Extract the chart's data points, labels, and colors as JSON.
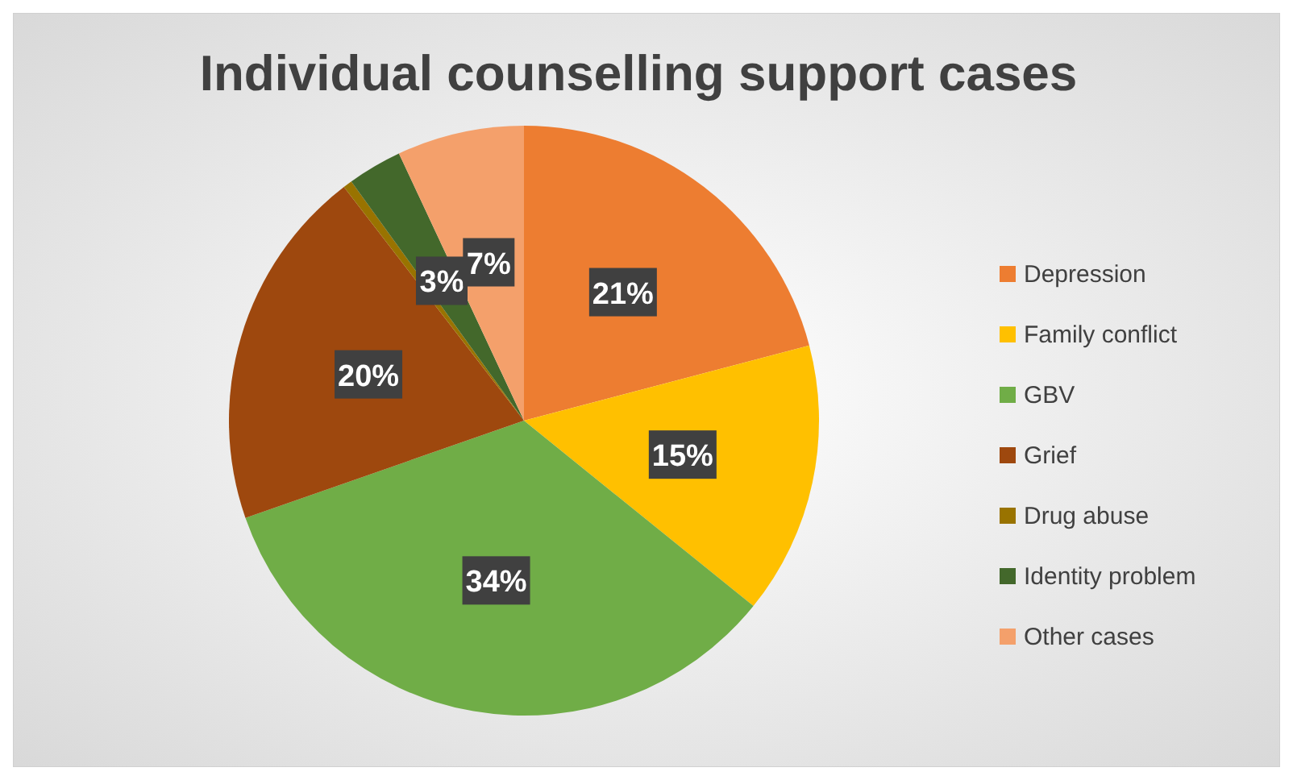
{
  "chart_data": {
    "type": "pie",
    "title": "Individual counselling support cases",
    "categories": [
      "Depression",
      "Family conflict",
      "GBV",
      "Grief",
      "Drug abuse",
      "Identity problem",
      "Other cases"
    ],
    "values": [
      21,
      15,
      34,
      20,
      0.5,
      3,
      7
    ],
    "value_labels": [
      "21%",
      "15%",
      "34%",
      "20%",
      null,
      "3%",
      "7%"
    ],
    "colors": [
      "#ed7d31",
      "#ffc000",
      "#70ad47",
      "#9e480e",
      "#997300",
      "#43682b",
      "#f4a06b"
    ],
    "legend": "right"
  }
}
